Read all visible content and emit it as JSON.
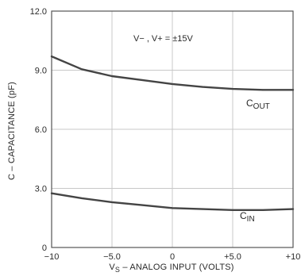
{
  "chart_data": {
    "type": "line",
    "title": "",
    "xlabel": "V_S – ANALOG INPUT (VOLTS)",
    "ylabel": "C – CAPACITANCE (pF)",
    "xlim": [
      -10,
      10
    ],
    "ylim": [
      0,
      12
    ],
    "xticks": [
      -10,
      -5,
      0,
      5,
      10
    ],
    "xtick_labels": [
      "−10",
      "−5.0",
      "0",
      "+5.0",
      "+10"
    ],
    "yticks": [
      0,
      3,
      6,
      9,
      12
    ],
    "ytick_labels": [
      "0",
      "3.0",
      "6.0",
      "9.0",
      "12.0"
    ],
    "grid": true,
    "annotation": "V− , V+ = ±15V",
    "series": [
      {
        "name": "C_OUT",
        "label_main": "C",
        "label_sub": "OUT",
        "x": [
          -10,
          -7.5,
          -5,
          -2.5,
          0,
          2.5,
          5,
          7.5,
          10
        ],
        "values": [
          9.7,
          9.05,
          8.7,
          8.5,
          8.3,
          8.15,
          8.05,
          8.0,
          8.0
        ]
      },
      {
        "name": "C_IN",
        "label_main": "C",
        "label_sub": "IN",
        "x": [
          -10,
          -7.5,
          -5,
          -2.5,
          0,
          2.5,
          5,
          7.5,
          10
        ],
        "values": [
          2.75,
          2.5,
          2.3,
          2.15,
          2.0,
          1.95,
          1.9,
          1.9,
          1.95
        ]
      }
    ],
    "colors": {
      "line": "#444444",
      "grid": "#c8c8c8",
      "frame": "#555555"
    }
  }
}
